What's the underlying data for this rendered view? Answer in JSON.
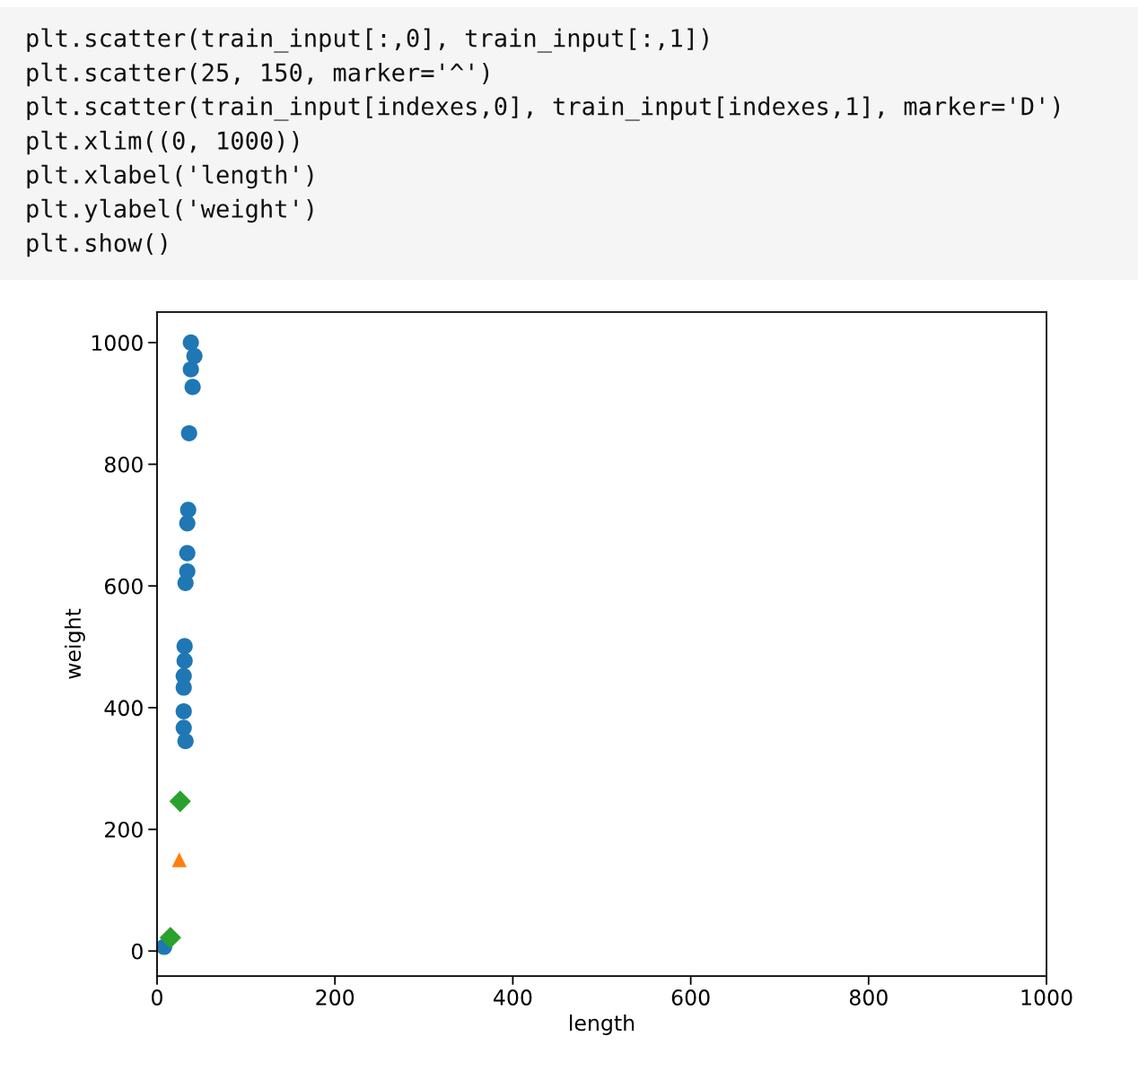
{
  "chart_data": {
    "type": "scatter",
    "xlabel": "length",
    "ylabel": "weight",
    "annotations": [
      "plt.scatter(train_input[:,0], train_input[:,1])",
      "plt.scatter(25, 150, marker='^')",
      "plt.scatter(train_input[indexes,0], train_input[indexes,1], marker='D')",
      "plt.xlim((0, 1000))",
      "plt.xlabel('length')",
      "plt.ylabel('weight')",
      "plt.show()"
    ],
    "xlim": [
      0,
      1000
    ],
    "xticks": [
      0,
      200,
      400,
      600,
      800,
      1000
    ],
    "ylim": [
      -41,
      1050
    ],
    "yticks": [
      0,
      200,
      400,
      600,
      800,
      1000
    ],
    "grid": false,
    "series": [
      {
        "color": "#1f77b4",
        "marker": "circle",
        "x": [
          38,
          42,
          38,
          40,
          36,
          35,
          34,
          34,
          34,
          32,
          31,
          31,
          30,
          30,
          30,
          30,
          32,
          8
        ],
        "values": [
          1000,
          978,
          956,
          927,
          851,
          725,
          703,
          654,
          624,
          605,
          501,
          477,
          452,
          433,
          394,
          367,
          345,
          7
        ]
      },
      {
        "color": "#ff7f0e",
        "marker": "triangle",
        "x": [
          25
        ],
        "values": [
          150
        ]
      },
      {
        "color": "#2ca02c",
        "marker": "diamond",
        "x": [
          26,
          15
        ],
        "values": [
          246,
          22
        ]
      }
    ]
  }
}
